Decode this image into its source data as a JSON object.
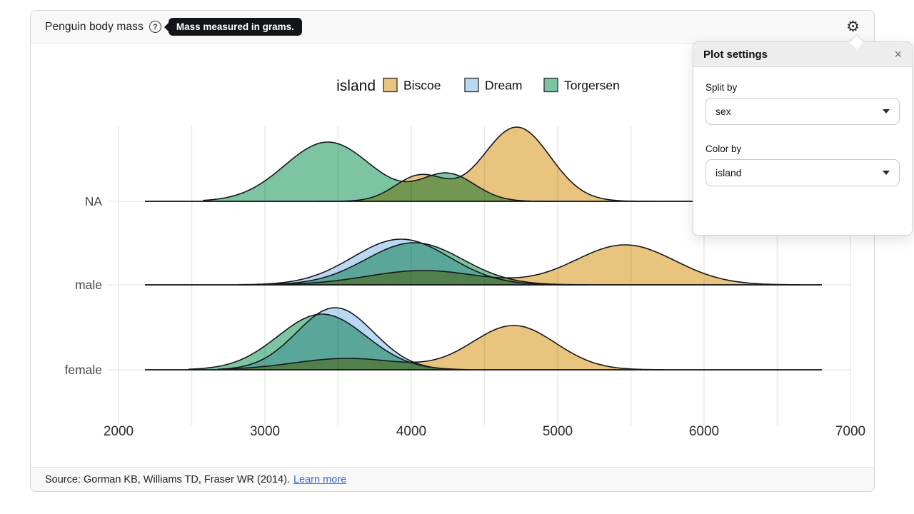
{
  "header": {
    "title": "Penguin body mass",
    "help_icon_glyph": "?",
    "help_tooltip": "Mass measured in grams.",
    "gear_icon_glyph": "⚙"
  },
  "settings_panel": {
    "title": "Plot settings",
    "close_label": "×",
    "fields": [
      {
        "label": "Split by",
        "value": "sex"
      },
      {
        "label": "Color by",
        "value": "island"
      }
    ]
  },
  "footer": {
    "source_text": "Source: Gorman KB, Williams TD, Fraser WR (2014).",
    "link_label": "Learn more"
  },
  "chart_data": {
    "type": "area",
    "subtype": "ridgeline-density",
    "title": "Penguin body mass",
    "x_unit": "grams",
    "x_range": [
      2000,
      7000
    ],
    "x_ticks": [
      2000,
      3000,
      4000,
      5000,
      6000,
      7000
    ],
    "x_gridline_step": 500,
    "grid": true,
    "legend": {
      "title": "island",
      "position": "top",
      "items": [
        {
          "label": "Biscoe",
          "color": "#e8c47e"
        },
        {
          "label": "Dream",
          "color": "#b9d8f1"
        },
        {
          "label": "Torgersen",
          "color": "#7cc4a2"
        }
      ]
    },
    "outline_color": "#16181d",
    "rows": [
      {
        "label": "NA",
        "curves": [
          {
            "island": "Biscoe",
            "domain": [
              3350,
              5680
            ],
            "components": [
              {
                "center": 4060,
                "sd": 170,
                "peak_height": 36
              },
              {
                "center": 4720,
                "sd": 228,
                "peak_height": 104
              }
            ]
          },
          {
            "island": "Torgersen",
            "domain": [
              2580,
              4980
            ],
            "components": [
              {
                "center": 3430,
                "sd": 295,
                "peak_height": 83
              },
              {
                "center": 4250,
                "sd": 185,
                "peak_height": 38
              }
            ]
          }
        ]
      },
      {
        "label": "male",
        "curves": [
          {
            "island": "Biscoe",
            "domain": [
              2950,
              6650
            ],
            "components": [
              {
                "center": 4080,
                "sd": 380,
                "peak_height": 20
              },
              {
                "center": 5460,
                "sd": 340,
                "peak_height": 56
              }
            ]
          },
          {
            "island": "Dream",
            "domain": [
              2820,
              5100
            ],
            "components": [
              {
                "center": 3930,
                "sd": 330,
                "peak_height": 64
              }
            ]
          },
          {
            "island": "Torgersen",
            "domain": [
              2900,
              5200
            ],
            "components": [
              {
                "center": 4020,
                "sd": 330,
                "peak_height": 59
              }
            ]
          }
        ]
      },
      {
        "label": "female",
        "curves": [
          {
            "island": "Biscoe",
            "domain": [
              2700,
              5720
            ],
            "components": [
              {
                "center": 3560,
                "sd": 360,
                "peak_height": 16
              },
              {
                "center": 4700,
                "sd": 285,
                "peak_height": 62
              }
            ]
          },
          {
            "island": "Dream",
            "domain": [
              2680,
              4400
            ],
            "components": [
              {
                "center": 3480,
                "sd": 262,
                "peak_height": 87
              }
            ]
          },
          {
            "island": "Torgersen",
            "domain": [
              2480,
              4350
            ],
            "components": [
              {
                "center": 3390,
                "sd": 300,
                "peak_height": 78
              }
            ]
          }
        ]
      }
    ]
  }
}
